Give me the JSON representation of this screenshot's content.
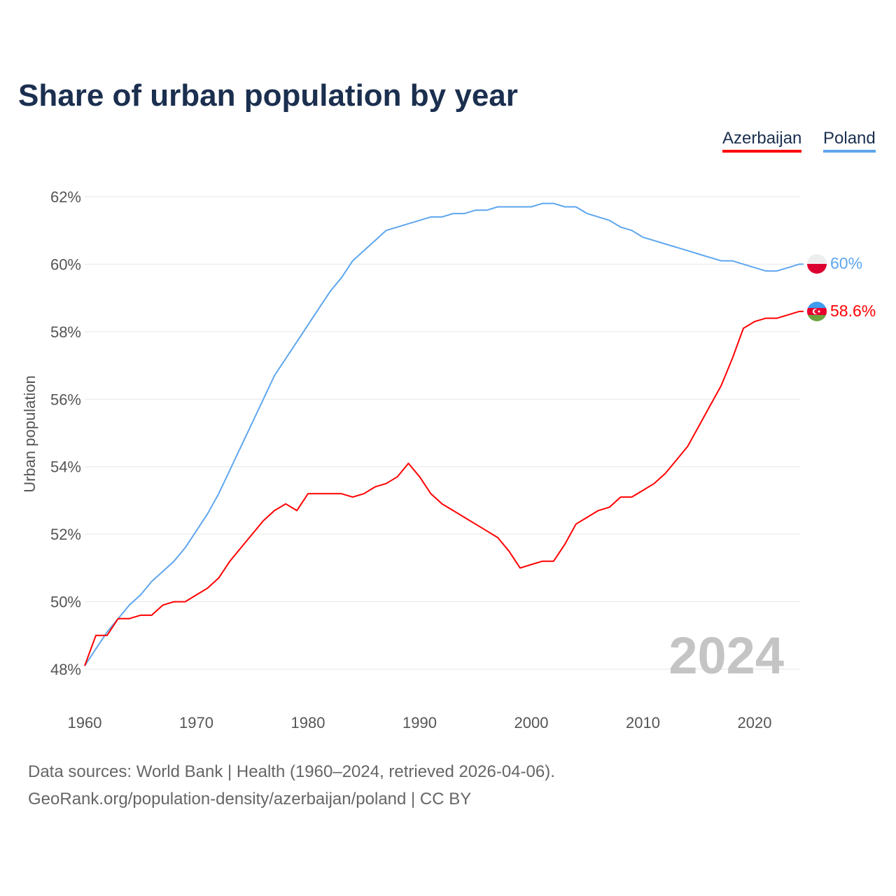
{
  "title": "Share of urban population by year",
  "year_watermark": "2024",
  "footer": {
    "line1": "Data sources: World Bank | Health (1960–2024, retrieved 2026-04-06).",
    "line2": "GeoRank.org/population-density/azerbaijan/poland | CC BY"
  },
  "chart_data": {
    "type": "line",
    "title": "Share of urban population by year",
    "xlabel": "",
    "ylabel": "Urban population",
    "xlim": [
      1960,
      2024
    ],
    "ylim": [
      48,
      62
    ],
    "xticks": [
      "1960",
      "1970",
      "1980",
      "1990",
      "2000",
      "2010",
      "2020"
    ],
    "yticks": [
      "48%",
      "50%",
      "52%",
      "54%",
      "56%",
      "58%",
      "60%",
      "62%"
    ],
    "grid": true,
    "legend_placement": "top-right",
    "x_start": 1960,
    "series": [
      {
        "name": "Azerbaijan",
        "color": "#ff0000",
        "end_label": "58.6%",
        "values": [
          48.1,
          49.0,
          49.0,
          49.5,
          49.5,
          49.6,
          49.6,
          49.9,
          50.0,
          50.0,
          50.2,
          50.4,
          50.7,
          51.2,
          51.6,
          52.0,
          52.4,
          52.7,
          52.9,
          52.7,
          53.2,
          53.2,
          53.2,
          53.2,
          53.1,
          53.2,
          53.4,
          53.5,
          53.7,
          54.1,
          53.7,
          53.2,
          52.9,
          52.7,
          52.5,
          52.3,
          52.1,
          51.9,
          51.5,
          51.0,
          51.1,
          51.2,
          51.2,
          51.7,
          52.3,
          52.5,
          52.7,
          52.8,
          53.1,
          53.1,
          53.3,
          53.5,
          53.8,
          54.2,
          54.6,
          55.2,
          55.8,
          56.4,
          57.2,
          58.1,
          58.3,
          58.4,
          58.4,
          58.5,
          58.6
        ]
      },
      {
        "name": "Poland",
        "color": "#5ea6ee",
        "end_label": "60%",
        "values": [
          48.1,
          48.6,
          49.1,
          49.5,
          49.9,
          50.2,
          50.6,
          50.9,
          51.2,
          51.6,
          52.1,
          52.6,
          53.2,
          53.9,
          54.6,
          55.3,
          56.0,
          56.7,
          57.2,
          57.7,
          58.2,
          58.7,
          59.2,
          59.6,
          60.1,
          60.4,
          60.7,
          61.0,
          61.1,
          61.2,
          61.3,
          61.4,
          61.4,
          61.5,
          61.5,
          61.6,
          61.6,
          61.7,
          61.7,
          61.7,
          61.7,
          61.8,
          61.8,
          61.7,
          61.7,
          61.5,
          61.4,
          61.3,
          61.1,
          61.0,
          60.8,
          60.7,
          60.6,
          60.5,
          60.4,
          60.3,
          60.2,
          60.1,
          60.1,
          60.0,
          59.9,
          59.8,
          59.8,
          59.9,
          60.0
        ]
      }
    ]
  }
}
